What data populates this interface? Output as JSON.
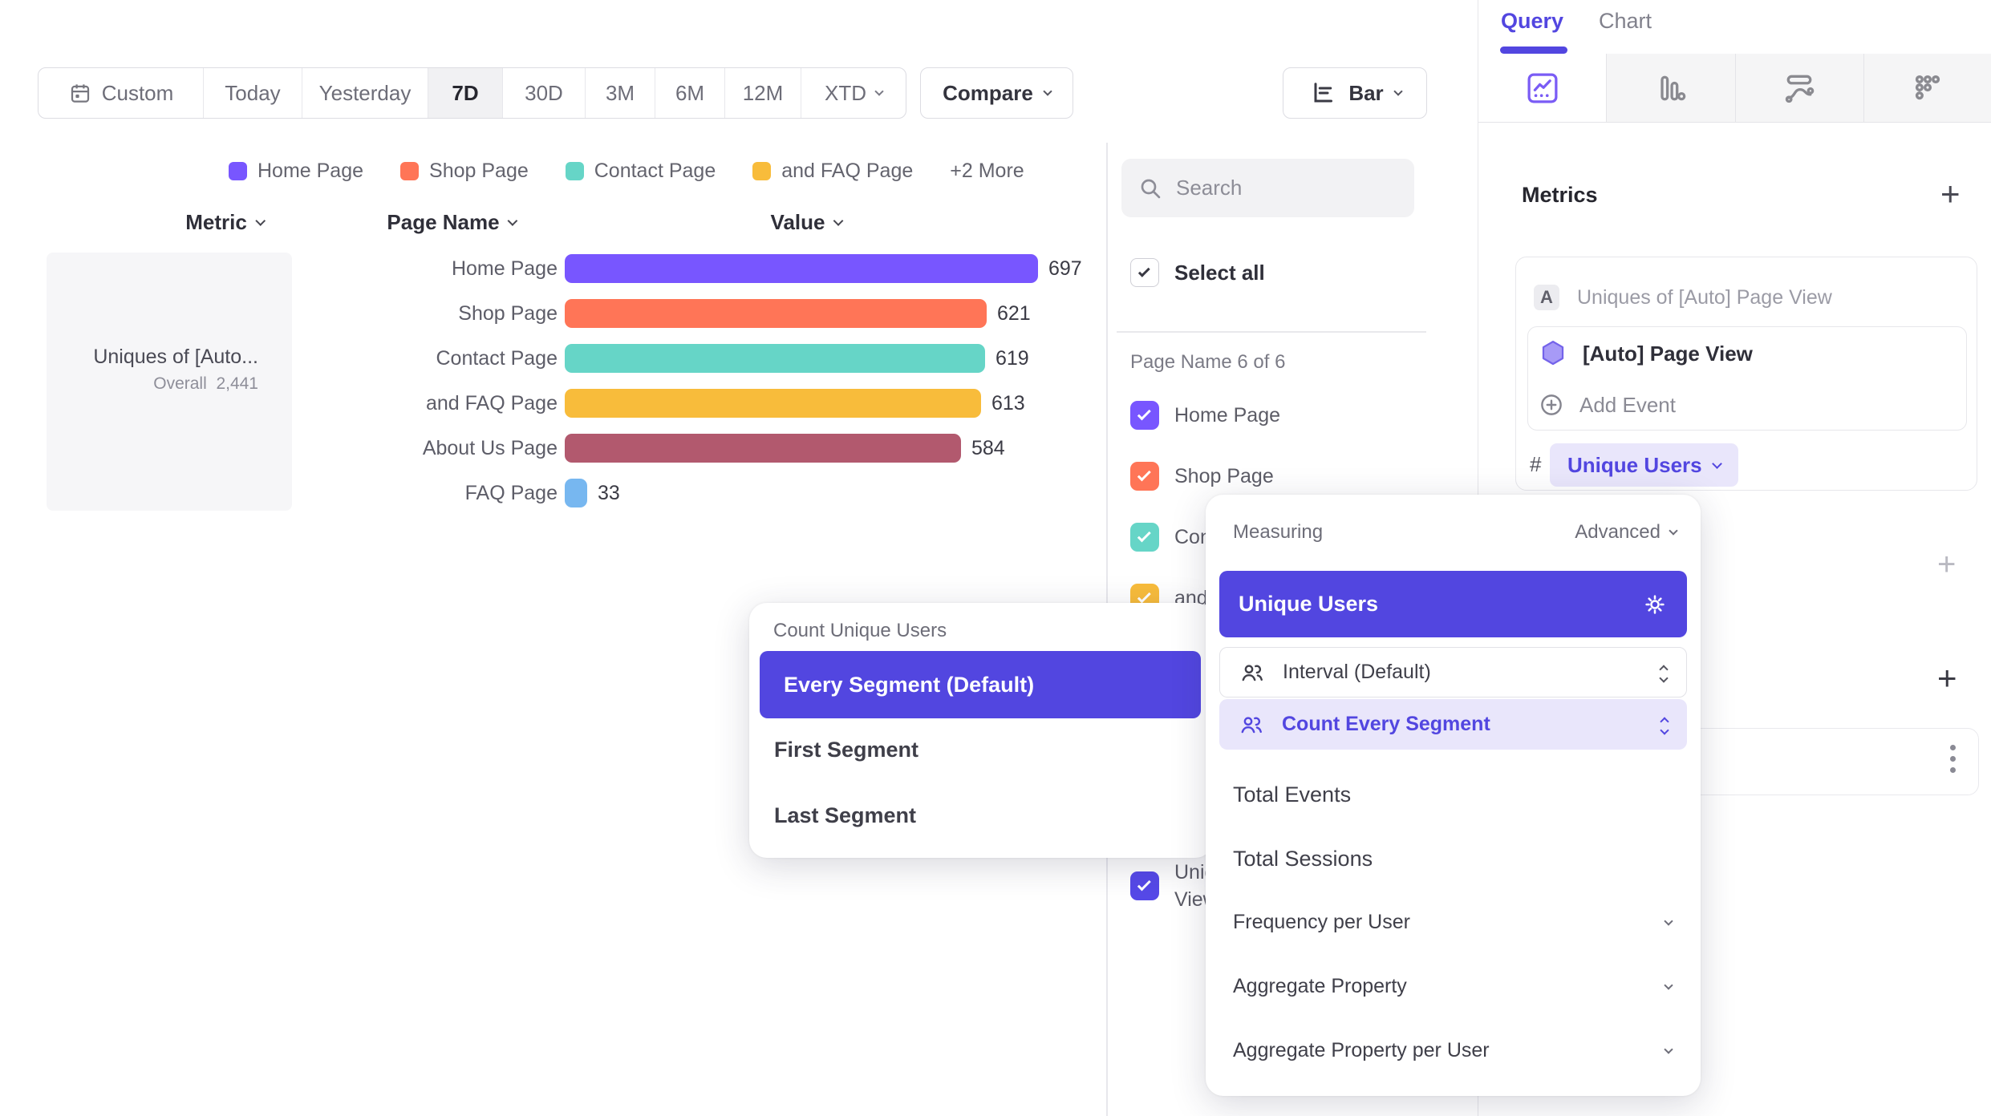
{
  "toolbar": {
    "date_ranges": [
      "Custom",
      "Today",
      "Yesterday",
      "7D",
      "30D",
      "3M",
      "6M",
      "12M",
      "XTD"
    ],
    "selected_range": "7D",
    "compare_label": "Compare",
    "chart_type_label": "Bar"
  },
  "chart_data": {
    "type": "bar",
    "orientation": "horizontal",
    "metric_name": "Uniques of [Auto...",
    "overall_label": "Overall",
    "overall_value": "2,441",
    "columns": {
      "metric": "Metric",
      "page_name": "Page Name",
      "value": "Value"
    },
    "categories": [
      "Home Page",
      "Shop Page",
      "Contact Page",
      "and FAQ Page",
      "About Us Page",
      "FAQ Page"
    ],
    "values": [
      697,
      621,
      619,
      613,
      584,
      33
    ],
    "colors": [
      "#7856FF",
      "#FF7557",
      "#66D5C7",
      "#F8BC3B",
      "#B2596E",
      "#77B7F0"
    ],
    "xlim": [
      0,
      697
    ],
    "legend_more": "+2 More"
  },
  "filter_panel": {
    "search_placeholder": "Search",
    "select_all_label": "Select all",
    "group_label": "Page Name 6 of 6",
    "items": [
      {
        "label": "Home Page",
        "color": "#7856FF"
      },
      {
        "label": "Shop Page",
        "color": "#FF7557"
      },
      {
        "label": "Contact Page",
        "color": "#66D5C7"
      },
      {
        "label": "and FAQ Page",
        "color": "#F8BC3B"
      },
      {
        "label_line1": "Uniques of [Auto] Page",
        "label_line2": "View",
        "color": "#5649E8"
      }
    ]
  },
  "query_panel": {
    "tabs": {
      "query": "Query",
      "chart": "Chart"
    },
    "metrics_heading": "Metrics",
    "series_badge": "A",
    "series_name": "Uniques of [Auto] Page View",
    "event_name": "[Auto] Page View",
    "add_event_label": "Add Event",
    "number_symbol": "#",
    "measurement_value": "Unique Users"
  },
  "measuring_popover": {
    "title": "Measuring",
    "mode_label": "Advanced",
    "selected_option": "Unique Users",
    "interval_option": "Interval (Default)",
    "segment_option": "Count Every Segment",
    "simple_options": [
      "Total Events",
      "Total Sessions"
    ],
    "expandable_options": [
      "Frequency per User",
      "Aggregate Property",
      "Aggregate Property per User"
    ]
  },
  "count_popover": {
    "title": "Count Unique Users",
    "selected_option": "Every Segment (Default)",
    "options": [
      "First Segment",
      "Last Segment"
    ]
  },
  "misc": {
    "plus": "+"
  }
}
